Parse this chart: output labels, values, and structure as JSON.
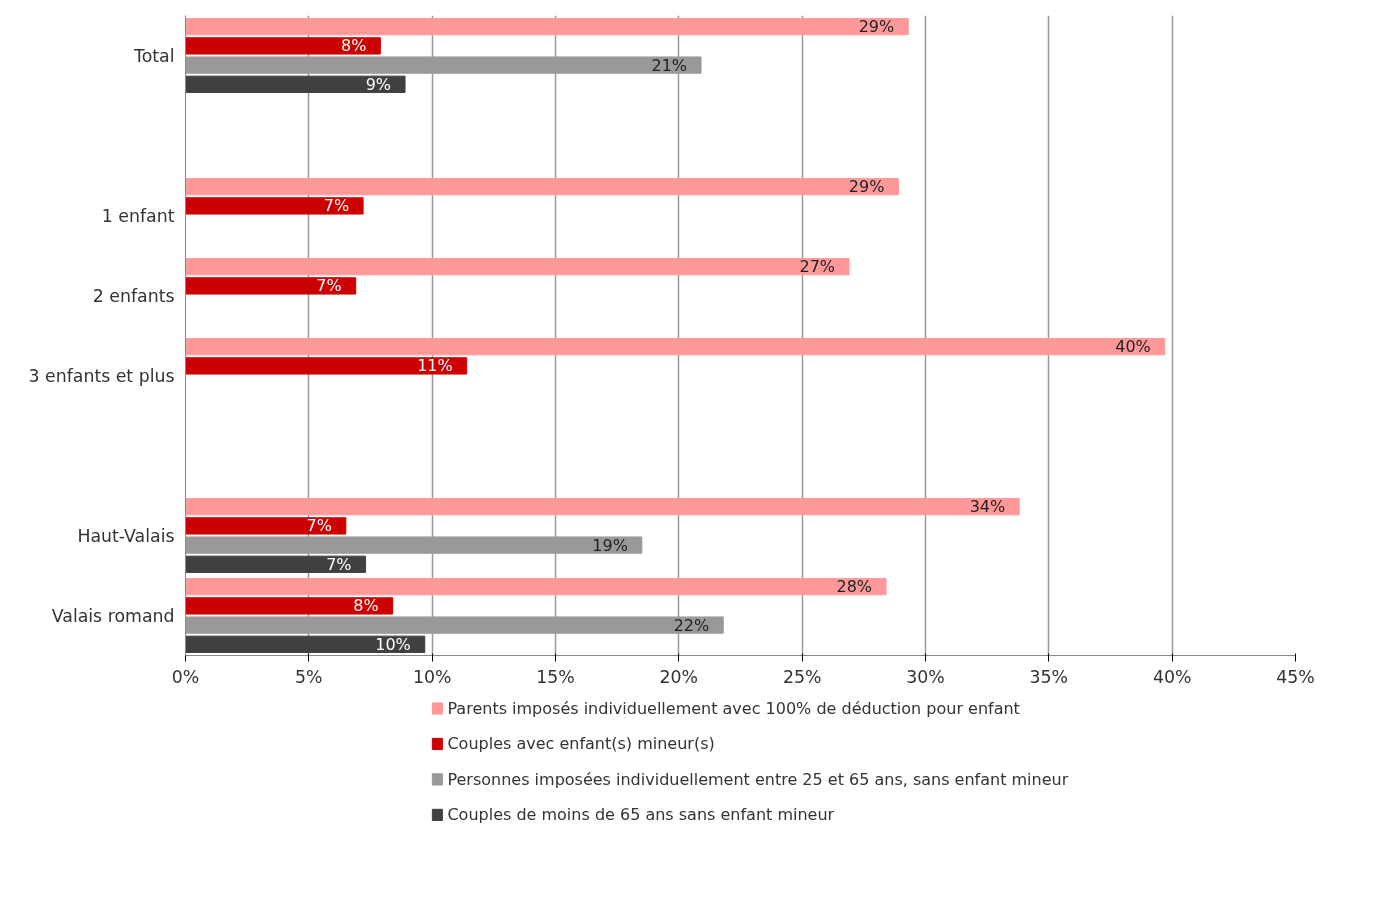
{
  "chart_data": {
    "type": "bar",
    "orientation": "horizontal",
    "categories": [
      "Total",
      null,
      "1 enfant",
      "2 enfants",
      "3 enfants et plus",
      null,
      "Haut-Valais",
      "Valais romand"
    ],
    "series": [
      {
        "name": "Parents imposés individuellement avec 100% de déduction pour enfant",
        "color": "#ff9999",
        "values": [
          29.3,
          null,
          28.9,
          26.9,
          39.7,
          null,
          33.8,
          28.4
        ],
        "value_labels": [
          "29%",
          null,
          "29%",
          "27%",
          "40%",
          null,
          "34%",
          "28%"
        ]
      },
      {
        "name": "Couples avec enfant(s) mineur(s)",
        "color": "#cc0000",
        "values": [
          7.9,
          null,
          7.2,
          6.9,
          11.4,
          null,
          6.5,
          8.4
        ],
        "value_labels": [
          "8%",
          null,
          "7%",
          "7%",
          "11%",
          null,
          "7%",
          "8%"
        ]
      },
      {
        "name": "Personnes imposées individuellement entre 25 et 65 ans, sans enfant mineur",
        "color": "#999999",
        "values": [
          20.9,
          null,
          null,
          null,
          null,
          null,
          18.5,
          21.8
        ],
        "value_labels": [
          "21%",
          null,
          null,
          null,
          null,
          null,
          "19%",
          "22%"
        ]
      },
      {
        "name": "Couples de moins de 65 ans sans enfant mineur",
        "color": "#404040",
        "values": [
          8.9,
          null,
          null,
          null,
          null,
          null,
          7.3,
          9.7
        ],
        "value_labels": [
          "9%",
          null,
          null,
          null,
          null,
          null,
          "7%",
          "10%"
        ]
      }
    ],
    "xlim": [
      0,
      45
    ],
    "xticks": [
      {
        "value": 0,
        "label": "0%"
      },
      {
        "value": 5,
        "label": "5%"
      },
      {
        "value": 10,
        "label": "10%"
      },
      {
        "value": 15,
        "label": "15%"
      },
      {
        "value": 20,
        "label": "20%"
      },
      {
        "value": 25,
        "label": "25%"
      },
      {
        "value": 30,
        "label": "30%"
      },
      {
        "value": 35,
        "label": "35%"
      },
      {
        "value": 40,
        "label": "40%"
      },
      {
        "value": 45,
        "label": "45%"
      }
    ],
    "grid": "x",
    "legend": "bottom"
  }
}
